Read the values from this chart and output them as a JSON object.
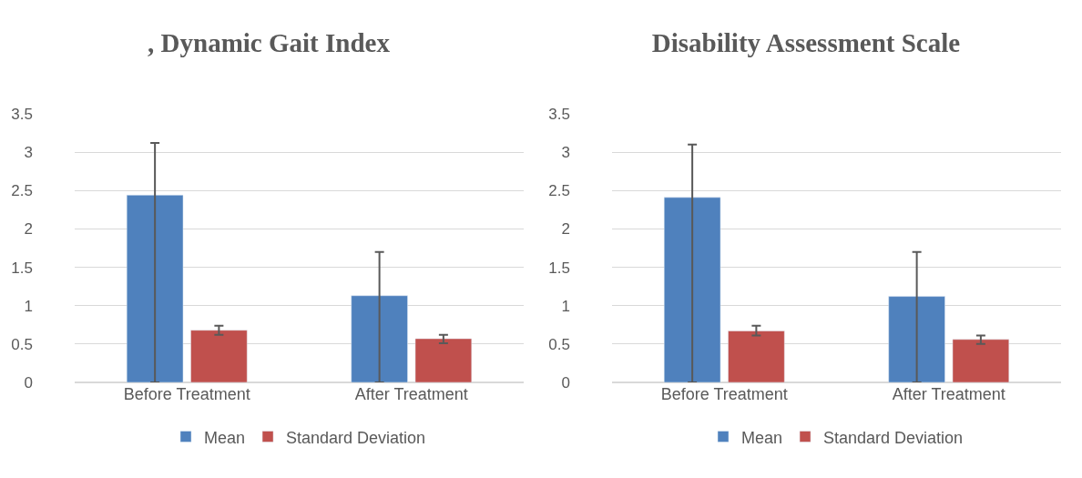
{
  "chart_data": [
    {
      "type": "bar",
      "title": ", Dynamic Gait Index",
      "categories": [
        "Before Treatment",
        "After Treatment"
      ],
      "series": [
        {
          "name": "Mean",
          "color": "#4f81bd",
          "values": [
            2.44,
            1.13
          ],
          "errors": [
            [
              0,
              3.12
            ],
            [
              0,
              1.7
            ]
          ]
        },
        {
          "name": "Standard Deviation",
          "color": "#c0504d",
          "values": [
            0.68,
            0.57
          ],
          "errors": [
            [
              0.62,
              0.74
            ],
            [
              0.51,
              0.62
            ]
          ]
        }
      ],
      "ylim": [
        0,
        3.5
      ],
      "yticks": [
        0,
        0.5,
        1,
        1.5,
        2,
        2.5,
        3,
        3.5
      ],
      "grid": "y",
      "legend": "bottom"
    },
    {
      "type": "bar",
      "title": "Disability Assessment Scale",
      "categories": [
        "Before Treatment",
        "After Treatment"
      ],
      "series": [
        {
          "name": "Mean",
          "color": "#4f81bd",
          "values": [
            2.41,
            1.12
          ],
          "errors": [
            [
              0,
              3.1
            ],
            [
              0,
              1.7
            ]
          ]
        },
        {
          "name": "Standard Deviation",
          "color": "#c0504d",
          "values": [
            0.67,
            0.56
          ],
          "errors": [
            [
              0.61,
              0.74
            ],
            [
              0.5,
              0.61
            ]
          ]
        }
      ],
      "ylim": [
        0,
        3.5
      ],
      "yticks": [
        0,
        0.5,
        1,
        1.5,
        2,
        2.5,
        3,
        3.5
      ],
      "grid": "y",
      "legend": "bottom"
    }
  ]
}
